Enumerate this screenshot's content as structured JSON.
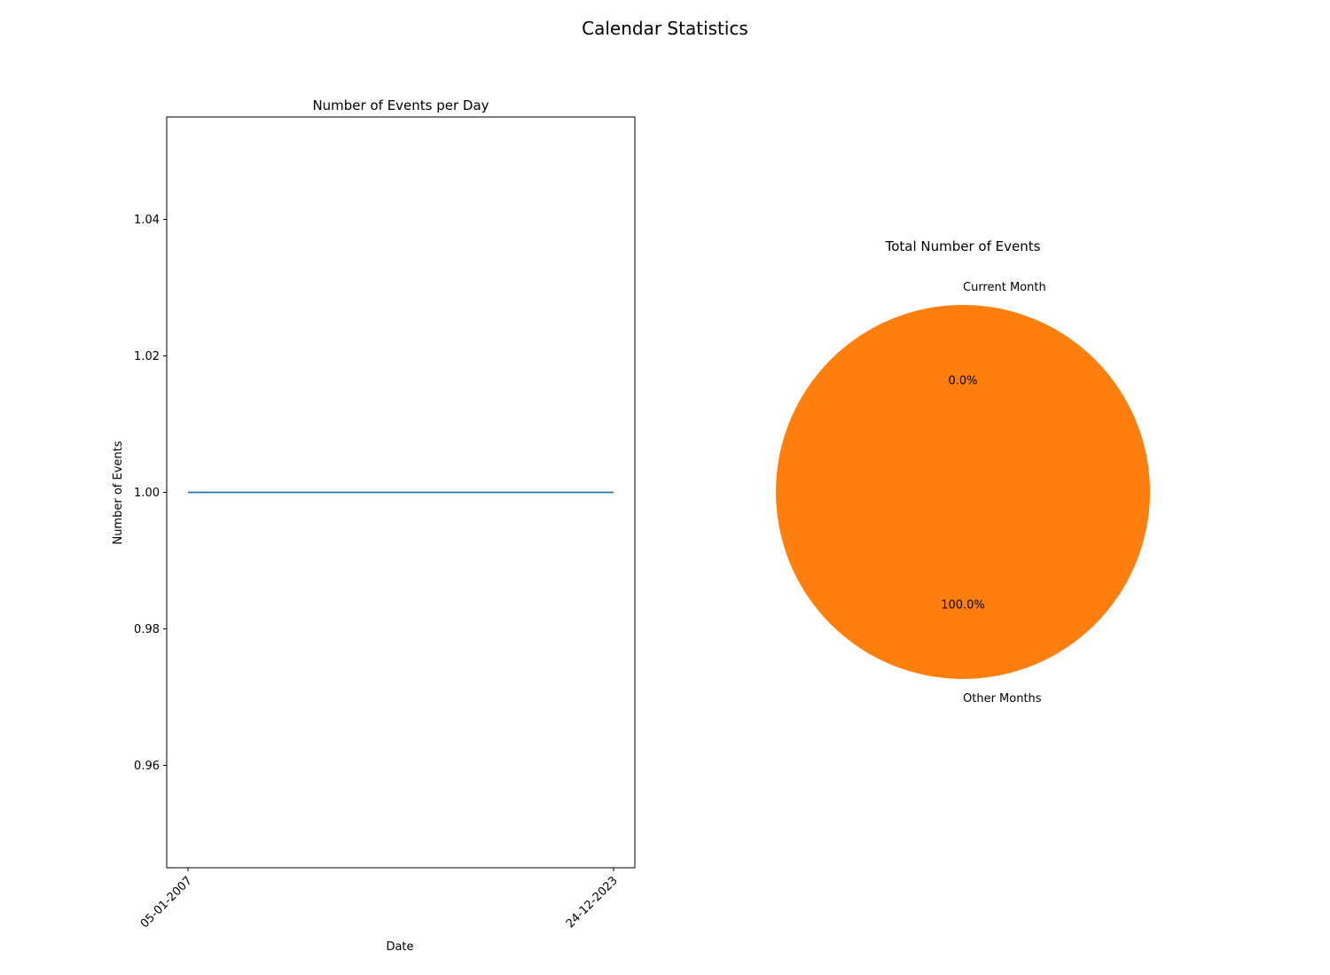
{
  "figure": {
    "title": "Calendar Statistics"
  },
  "chart_data": [
    {
      "type": "line",
      "title": "Number of Events per Day",
      "xlabel": "Date",
      "ylabel": "Number of Events",
      "x_tick_labels": [
        "05-01-2007",
        "24-12-2023"
      ],
      "y_ticks": [
        0.96,
        0.98,
        1.0,
        1.02,
        1.04
      ],
      "y_tick_labels": [
        "0.96",
        "0.98",
        "1.00",
        "1.02",
        "1.04"
      ],
      "ylim": [
        0.945,
        1.055
      ],
      "series": [
        {
          "color": "#1f77b4",
          "x": [
            "05-01-2007",
            "24-12-2023"
          ],
          "values": [
            1,
            1
          ]
        }
      ]
    },
    {
      "type": "pie",
      "title": "Total Number of Events",
      "labels": [
        "Current Month",
        "Other Months"
      ],
      "values": [
        0,
        100
      ],
      "autopct_labels": [
        "0.0%",
        "100.0%"
      ],
      "colors": [
        "#1f77b4",
        "#ff7f0e"
      ]
    }
  ]
}
